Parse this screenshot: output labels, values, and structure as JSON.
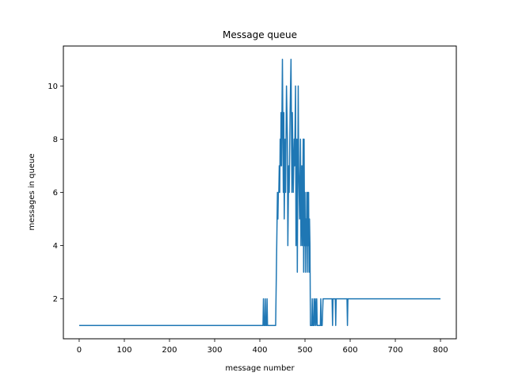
{
  "chart_data": {
    "type": "line",
    "title": "Message queue",
    "xlabel": "message number",
    "ylabel": "messages in queue",
    "xlim": [
      -35,
      835
    ],
    "ylim": [
      0.5,
      11.5
    ],
    "xticks": [
      0,
      100,
      200,
      300,
      400,
      500,
      600,
      700,
      800
    ],
    "yticks": [
      2,
      4,
      6,
      8,
      10
    ],
    "grid": false,
    "legend": "none",
    "series": [
      {
        "color": "#1f77b4",
        "points": [
          [
            0,
            1
          ],
          [
            407,
            1
          ],
          [
            408,
            2
          ],
          [
            409,
            1
          ],
          [
            411,
            1
          ],
          [
            412,
            2
          ],
          [
            413,
            1
          ],
          [
            415,
            1
          ],
          [
            416,
            2
          ],
          [
            417,
            1
          ],
          [
            435,
            1
          ],
          [
            439,
            6
          ],
          [
            440,
            5
          ],
          [
            441,
            6
          ],
          [
            442,
            6
          ],
          [
            443,
            7
          ],
          [
            444,
            6
          ],
          [
            445,
            8
          ],
          [
            446,
            7
          ],
          [
            447,
            9
          ],
          [
            448,
            7
          ],
          [
            450,
            11
          ],
          [
            452,
            6
          ],
          [
            453,
            9
          ],
          [
            454,
            5
          ],
          [
            456,
            8
          ],
          [
            457,
            6
          ],
          [
            459,
            10
          ],
          [
            461,
            8
          ],
          [
            462,
            4
          ],
          [
            464,
            7
          ],
          [
            465,
            6
          ],
          [
            467,
            9
          ],
          [
            469,
            11
          ],
          [
            471,
            6
          ],
          [
            472,
            9
          ],
          [
            474,
            6
          ],
          [
            476,
            8
          ],
          [
            477,
            7
          ],
          [
            479,
            10
          ],
          [
            480,
            4
          ],
          [
            482,
            8
          ],
          [
            483,
            3
          ],
          [
            485,
            10
          ],
          [
            486,
            7
          ],
          [
            488,
            5
          ],
          [
            490,
            8
          ],
          [
            491,
            4
          ],
          [
            493,
            7
          ],
          [
            494,
            4
          ],
          [
            496,
            8
          ],
          [
            497,
            3
          ],
          [
            498,
            8
          ],
          [
            499,
            4
          ],
          [
            500,
            6
          ],
          [
            501,
            3
          ],
          [
            502,
            5
          ],
          [
            503,
            4
          ],
          [
            504,
            6
          ],
          [
            505,
            3
          ],
          [
            506,
            6
          ],
          [
            507,
            4
          ],
          [
            508,
            6
          ],
          [
            509,
            3
          ],
          [
            510,
            5
          ],
          [
            511,
            4
          ],
          [
            512,
            1
          ],
          [
            515,
            1
          ],
          [
            516,
            2
          ],
          [
            517,
            1
          ],
          [
            519,
            1
          ],
          [
            520,
            2
          ],
          [
            521,
            1
          ],
          [
            523,
            2
          ],
          [
            524,
            1
          ],
          [
            526,
            2
          ],
          [
            527,
            1
          ],
          [
            534,
            1
          ],
          [
            535,
            2
          ],
          [
            536,
            1
          ],
          [
            538,
            1
          ],
          [
            540,
            2
          ],
          [
            560,
            2
          ],
          [
            561,
            1
          ],
          [
            562,
            2
          ],
          [
            567,
            2
          ],
          [
            568,
            1
          ],
          [
            569,
            2
          ],
          [
            593,
            2
          ],
          [
            594,
            1
          ],
          [
            595,
            2
          ],
          [
            800,
            2
          ]
        ]
      }
    ]
  }
}
